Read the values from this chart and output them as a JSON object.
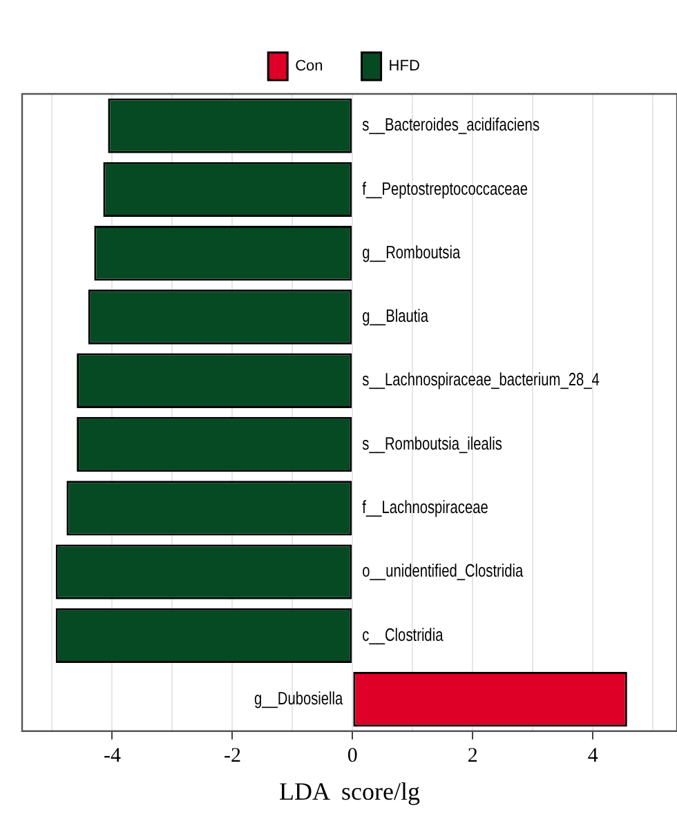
{
  "chart_data": {
    "type": "bar",
    "orientation": "horizontal",
    "xlabel": "LDA  score/lg",
    "categories": [
      "s__Bacteroides_acidifaciens",
      "f__Peptostreptococcaceae",
      "g__Romboutsia",
      "g__Blautia",
      "s__Lachnospiraceae_bacterium_28_4",
      "s__Romboutsia_ilealis",
      "f__Lachnospiraceae",
      "o__unidentified_Clostridia",
      "c__Clostridia",
      "g__Dubosiella"
    ],
    "series": [
      {
        "name": "Con",
        "color": "#de0027",
        "values": [
          null,
          null,
          null,
          null,
          null,
          null,
          null,
          null,
          null,
          4.57
        ]
      },
      {
        "name": "HFD",
        "color": "#064a24",
        "values": [
          -4.07,
          -4.15,
          -4.3,
          -4.4,
          -4.59,
          -4.59,
          -4.76,
          -4.94,
          -4.94,
          null
        ]
      }
    ],
    "xlim": [
      -5.5,
      5.4
    ],
    "xticks": [
      {
        "value": -5,
        "label": null
      },
      -4,
      {
        "value": -3,
        "label": null
      },
      -2,
      {
        "value": -1,
        "label": null
      },
      0,
      {
        "value": 1,
        "label": null
      },
      2,
      {
        "value": 3,
        "label": null
      },
      4,
      {
        "value": 5,
        "label": null
      }
    ],
    "grid": "x",
    "legend": "top",
    "tick_labels": "x"
  }
}
